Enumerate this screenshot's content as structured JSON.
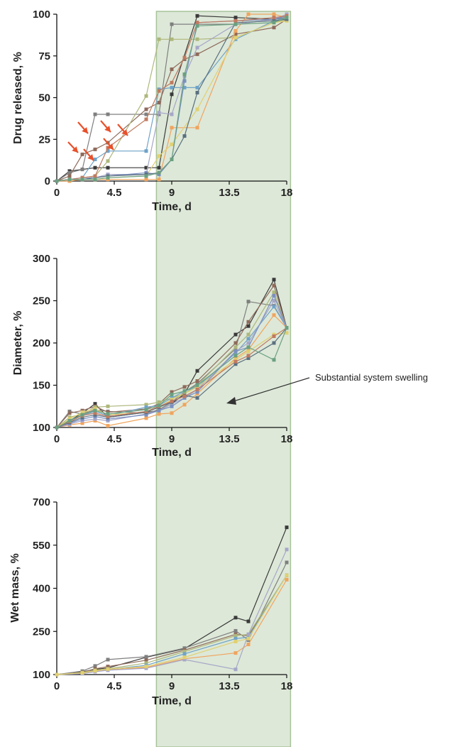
{
  "annotation": "Substantial system swelling",
  "colors": {
    "shaded_region": "#dde8d8",
    "shaded_border": "#a8c39a",
    "arrow": "#e8502a",
    "axis": "#111111",
    "series": [
      "#3a3a3a",
      "#7f7f7f",
      "#8f6a5a",
      "#aeb77b",
      "#6fa3c8",
      "#f0a45e",
      "#a6a6c8",
      "#e0d070",
      "#7a8fc0",
      "#5a7080",
      "#c07a60",
      "#6aa080"
    ]
  },
  "shaded_x_range": [
    7.8,
    18.3
  ],
  "chart_data": [
    {
      "type": "line",
      "xlabel": "Time, d",
      "ylabel": "Drug released, %",
      "xlim": [
        0,
        18
      ],
      "ylim": [
        0,
        100
      ],
      "xticks": [
        "0",
        "4.5",
        "9",
        "13.5",
        "18"
      ],
      "yticks": [
        "0",
        "25",
        "50",
        "75",
        "100"
      ],
      "series": [
        {
          "x": [
            0,
            1,
            2,
            3,
            4,
            7,
            8,
            9,
            11,
            14,
            17,
            18
          ],
          "values": [
            0,
            6,
            7,
            8,
            8,
            8,
            8,
            52,
            99,
            98,
            97,
            98
          ]
        },
        {
          "x": [
            0,
            1,
            2,
            3,
            4,
            7,
            8,
            9,
            11,
            14,
            17,
            18
          ],
          "values": [
            0,
            5,
            7,
            40,
            40,
            40,
            40,
            94,
            94,
            94,
            97,
            98
          ]
        },
        {
          "x": [
            0,
            1,
            2,
            3,
            4,
            7,
            8,
            9,
            10,
            11,
            14,
            17,
            18
          ],
          "values": [
            0,
            3,
            16,
            19,
            23,
            43,
            47,
            67,
            73,
            76,
            88,
            92,
            97
          ]
        },
        {
          "x": [
            0,
            1,
            2,
            3,
            4,
            7,
            8,
            9,
            11,
            14,
            17,
            18
          ],
          "values": [
            0,
            1,
            2,
            3,
            12,
            51,
            85,
            85,
            85,
            86,
            95,
            97
          ]
        },
        {
          "x": [
            0,
            1,
            2,
            3,
            4,
            7,
            8,
            9,
            10,
            11,
            14,
            17,
            18
          ],
          "values": [
            0,
            1,
            2,
            13,
            18,
            18,
            55,
            56,
            56,
            56,
            85,
            96,
            98
          ]
        },
        {
          "x": [
            0,
            1,
            2,
            3,
            4,
            7,
            8,
            9,
            11,
            14,
            15,
            17,
            18
          ],
          "values": [
            0,
            0,
            1,
            1,
            1,
            1,
            1,
            32,
            32,
            90,
            100,
            100,
            98
          ]
        },
        {
          "x": [
            0,
            1,
            2,
            3,
            4,
            7,
            8,
            9,
            10,
            11,
            14,
            17,
            18
          ],
          "values": [
            0,
            1,
            2,
            2,
            4,
            4,
            41,
            40,
            63,
            80,
            94,
            97,
            100
          ]
        },
        {
          "x": [
            0,
            1,
            2,
            3,
            4,
            7,
            8,
            9,
            11,
            14,
            17,
            18
          ],
          "values": [
            0,
            1,
            1,
            1,
            2,
            3,
            15,
            22,
            43,
            86,
            95,
            96
          ]
        },
        {
          "x": [
            0,
            1,
            2,
            3,
            4,
            7,
            8,
            9,
            10,
            11,
            14,
            17,
            18
          ],
          "values": [
            0,
            1,
            1,
            2,
            3,
            5,
            4,
            13,
            60,
            95,
            96,
            97,
            99
          ]
        },
        {
          "x": [
            0,
            1,
            2,
            3,
            4,
            7,
            8,
            9,
            10,
            11,
            14,
            17,
            18
          ],
          "values": [
            0,
            1,
            1,
            2,
            3,
            4,
            5,
            13,
            27,
            53,
            95,
            96,
            97
          ]
        },
        {
          "x": [
            0,
            1,
            2,
            3,
            4,
            7,
            8,
            9,
            10,
            11,
            14,
            17,
            18
          ],
          "values": [
            0,
            1,
            2,
            3,
            20,
            37,
            54,
            59,
            74,
            95,
            96,
            98,
            99
          ]
        },
        {
          "x": [
            0,
            1,
            2,
            3,
            4,
            7,
            8,
            9,
            10,
            11,
            14,
            17,
            18
          ],
          "values": [
            0,
            1,
            1,
            1,
            2,
            3,
            5,
            13,
            64,
            93,
            94,
            95,
            98
          ]
        }
      ]
    },
    {
      "type": "line",
      "xlabel": "Time, d",
      "ylabel": "Diameter, %",
      "xlim": [
        0,
        18
      ],
      "ylim": [
        100,
        300
      ],
      "xticks": [
        "0",
        "4.5",
        "9",
        "13.5",
        "18"
      ],
      "yticks": [
        "100",
        "150",
        "200",
        "250",
        "300"
      ],
      "series": [
        {
          "x": [
            0,
            1,
            2,
            3,
            4,
            7,
            8,
            9,
            10,
            11,
            14,
            15,
            17,
            18
          ],
          "values": [
            100,
            108,
            117,
            128,
            112,
            118,
            120,
            128,
            140,
            167,
            210,
            220,
            275,
            218
          ]
        },
        {
          "x": [
            0,
            1,
            2,
            3,
            4,
            7,
            8,
            9,
            10,
            11,
            14,
            15,
            17,
            18
          ],
          "values": [
            100,
            119,
            116,
            121,
            119,
            117,
            121,
            130,
            142,
            152,
            193,
            249,
            244,
            218
          ]
        },
        {
          "x": [
            0,
            1,
            2,
            3,
            4,
            7,
            8,
            9,
            10,
            11,
            14,
            15,
            17,
            18
          ],
          "values": [
            100,
            117,
            120,
            125,
            118,
            122,
            128,
            142,
            148,
            155,
            200,
            225,
            268,
            218
          ]
        },
        {
          "x": [
            0,
            1,
            2,
            3,
            4,
            7,
            8,
            9,
            10,
            11,
            14,
            15,
            17,
            18
          ],
          "values": [
            100,
            112,
            116,
            124,
            125,
            127,
            130,
            135,
            140,
            150,
            195,
            210,
            260,
            218
          ]
        },
        {
          "x": [
            0,
            1,
            2,
            3,
            4,
            7,
            8,
            9,
            10,
            11,
            14,
            15,
            17,
            18
          ],
          "values": [
            100,
            109,
            114,
            119,
            114,
            124,
            126,
            135,
            143,
            148,
            188,
            205,
            243,
            218
          ]
        },
        {
          "x": [
            0,
            1,
            2,
            3,
            4,
            7,
            8,
            9,
            10,
            11,
            14,
            15,
            17,
            18
          ],
          "values": [
            100,
            103,
            105,
            108,
            102,
            111,
            116,
            117,
            127,
            140,
            182,
            192,
            233,
            218
          ]
        },
        {
          "x": [
            0,
            1,
            2,
            3,
            4,
            7,
            8,
            9,
            10,
            11,
            14,
            15,
            17,
            18
          ],
          "values": [
            100,
            104,
            108,
            110,
            108,
            116,
            120,
            128,
            135,
            145,
            190,
            200,
            250,
            218
          ]
        },
        {
          "x": [
            0,
            1,
            2,
            3,
            4,
            7,
            8,
            9,
            10,
            11,
            14,
            15,
            17,
            18
          ],
          "values": [
            100,
            110,
            118,
            122,
            115,
            118,
            124,
            133,
            140,
            148,
            180,
            190,
            210,
            212
          ]
        },
        {
          "x": [
            0,
            1,
            2,
            3,
            4,
            7,
            8,
            9,
            10,
            11,
            14,
            15,
            17,
            18
          ],
          "values": [
            100,
            105,
            110,
            113,
            110,
            115,
            120,
            125,
            135,
            142,
            190,
            195,
            256,
            218
          ]
        },
        {
          "x": [
            0,
            1,
            2,
            3,
            4,
            7,
            8,
            9,
            10,
            11,
            14,
            15,
            17,
            18
          ],
          "values": [
            100,
            106,
            112,
            115,
            112,
            118,
            124,
            130,
            138,
            135,
            175,
            182,
            200,
            218
          ]
        },
        {
          "x": [
            0,
            1,
            2,
            3,
            4,
            7,
            8,
            9,
            10,
            11,
            14,
            15,
            17,
            18
          ],
          "values": [
            100,
            107,
            114,
            117,
            113,
            119,
            125,
            131,
            137,
            145,
            178,
            185,
            208,
            218
          ]
        },
        {
          "x": [
            0,
            1,
            2,
            3,
            4,
            7,
            8,
            9,
            10,
            11,
            14,
            15,
            17,
            18
          ],
          "values": [
            100,
            108,
            115,
            120,
            116,
            121,
            126,
            139,
            143,
            150,
            185,
            195,
            180,
            218
          ]
        }
      ]
    },
    {
      "type": "line",
      "xlabel": "Time, d",
      "ylabel": "Wet mass, %",
      "xlim": [
        0,
        18
      ],
      "ylim": [
        100,
        700
      ],
      "xticks": [
        "0",
        "4.5",
        "9",
        "13.5",
        "18"
      ],
      "yticks": [
        "100",
        "250",
        "400",
        "550",
        "700"
      ],
      "series": [
        {
          "x": [
            0,
            2,
            3,
            4,
            7,
            10,
            14,
            15,
            18
          ],
          "values": [
            100,
            110,
            118,
            123,
            160,
            190,
            298,
            285,
            612
          ]
        },
        {
          "x": [
            0,
            2,
            3,
            4,
            7,
            10,
            14,
            15,
            18
          ],
          "values": [
            100,
            112,
            130,
            152,
            162,
            192,
            252,
            220,
            490
          ]
        },
        {
          "x": [
            0,
            2,
            3,
            4,
            7,
            10,
            14,
            15,
            18
          ],
          "values": [
            100,
            108,
            120,
            128,
            150,
            185,
            240,
            235,
            445
          ]
        },
        {
          "x": [
            0,
            2,
            3,
            4,
            7,
            10,
            14,
            15,
            18
          ],
          "values": [
            100,
            107,
            115,
            120,
            140,
            180,
            235,
            240,
            445
          ]
        },
        {
          "x": [
            0,
            2,
            3,
            4,
            7,
            10,
            14,
            15,
            18
          ],
          "values": [
            100,
            105,
            112,
            118,
            132,
            172,
            225,
            230,
            445
          ]
        },
        {
          "x": [
            0,
            2,
            3,
            4,
            7,
            10,
            14,
            15,
            18
          ],
          "values": [
            100,
            104,
            112,
            116,
            125,
            155,
            175,
            205,
            430
          ]
        },
        {
          "x": [
            0,
            2,
            3,
            4,
            7,
            10,
            14,
            15,
            18
          ],
          "values": [
            100,
            103,
            110,
            115,
            122,
            152,
            118,
            240,
            535
          ]
        },
        {
          "x": [
            0,
            2,
            3,
            4,
            7,
            10,
            14,
            15,
            18
          ],
          "values": [
            100,
            106,
            113,
            119,
            128,
            160,
            215,
            225,
            445
          ]
        }
      ]
    }
  ]
}
